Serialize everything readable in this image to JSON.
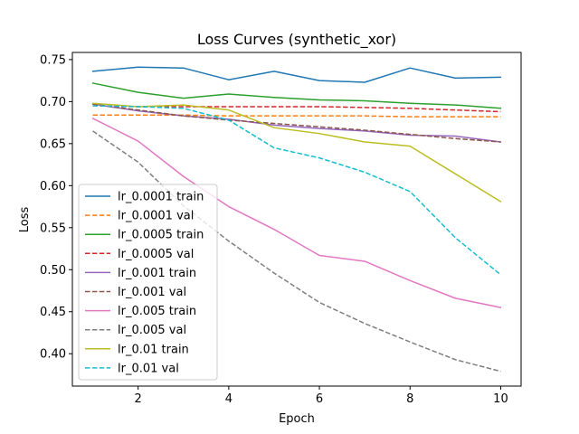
{
  "chart_data": {
    "type": "line",
    "title": "Loss Curves (synthetic_xor)",
    "xlabel": "Epoch",
    "ylabel": "Loss",
    "xlim": [
      0.55,
      10.45
    ],
    "ylim": [
      0.3615,
      0.7585
    ],
    "xticks": [
      2,
      4,
      6,
      8,
      10
    ],
    "yticks": [
      0.4,
      0.45,
      0.5,
      0.55,
      0.6,
      0.65,
      0.7,
      0.75
    ],
    "ytick_labels": [
      "0.40",
      "0.45",
      "0.50",
      "0.55",
      "0.60",
      "0.65",
      "0.70",
      "0.75"
    ],
    "grid": false,
    "legend_position": "lower-left",
    "x": [
      1,
      2,
      3,
      4,
      5,
      6,
      7,
      8,
      9,
      10
    ],
    "series": [
      {
        "name": "lr_0.0001 train",
        "color": "#1f77b4",
        "dash": "solid",
        "values": [
          0.736,
          0.741,
          0.74,
          0.726,
          0.736,
          0.725,
          0.723,
          0.74,
          0.728,
          0.729
        ]
      },
      {
        "name": "lr_0.0001 val",
        "color": "#ff7f0e",
        "dash": "dashed",
        "values": [
          0.684,
          0.684,
          0.684,
          0.683,
          0.683,
          0.683,
          0.683,
          0.682,
          0.682,
          0.682
        ]
      },
      {
        "name": "lr_0.0005 train",
        "color": "#2ca02c",
        "dash": "solid",
        "values": [
          0.722,
          0.711,
          0.704,
          0.709,
          0.705,
          0.702,
          0.701,
          0.698,
          0.696,
          0.692
        ]
      },
      {
        "name": "lr_0.0005 val",
        "color": "#d62728",
        "dash": "dashed",
        "values": [
          0.695,
          0.694,
          0.694,
          0.694,
          0.694,
          0.694,
          0.693,
          0.692,
          0.69,
          0.688
        ]
      },
      {
        "name": "lr_0.001 train",
        "color": "#9467bd",
        "dash": "solid",
        "values": [
          0.697,
          0.689,
          0.683,
          0.679,
          0.672,
          0.668,
          0.665,
          0.66,
          0.659,
          0.652
        ]
      },
      {
        "name": "lr_0.001 val",
        "color": "#8c564b",
        "dash": "dashed",
        "values": [
          0.697,
          0.69,
          0.683,
          0.678,
          0.674,
          0.67,
          0.666,
          0.661,
          0.656,
          0.652
        ]
      },
      {
        "name": "lr_0.005 train",
        "color": "#e377c2",
        "dash": "solid",
        "values": [
          0.68,
          0.653,
          0.611,
          0.575,
          0.548,
          0.517,
          0.51,
          0.487,
          0.466,
          0.455
        ]
      },
      {
        "name": "lr_0.005 val",
        "color": "#7f7f7f",
        "dash": "dashed",
        "values": [
          0.665,
          0.628,
          0.576,
          0.534,
          0.496,
          0.461,
          0.436,
          0.414,
          0.393,
          0.379
        ]
      },
      {
        "name": "lr_0.01 train",
        "color": "#bcbd22",
        "dash": "solid",
        "values": [
          0.698,
          0.694,
          0.696,
          0.69,
          0.669,
          0.662,
          0.652,
          0.647,
          0.614,
          0.581
        ]
      },
      {
        "name": "lr_0.01 val",
        "color": "#17becf",
        "dash": "dashed",
        "values": [
          0.695,
          0.694,
          0.692,
          0.678,
          0.645,
          0.633,
          0.616,
          0.593,
          0.538,
          0.494
        ]
      }
    ]
  }
}
